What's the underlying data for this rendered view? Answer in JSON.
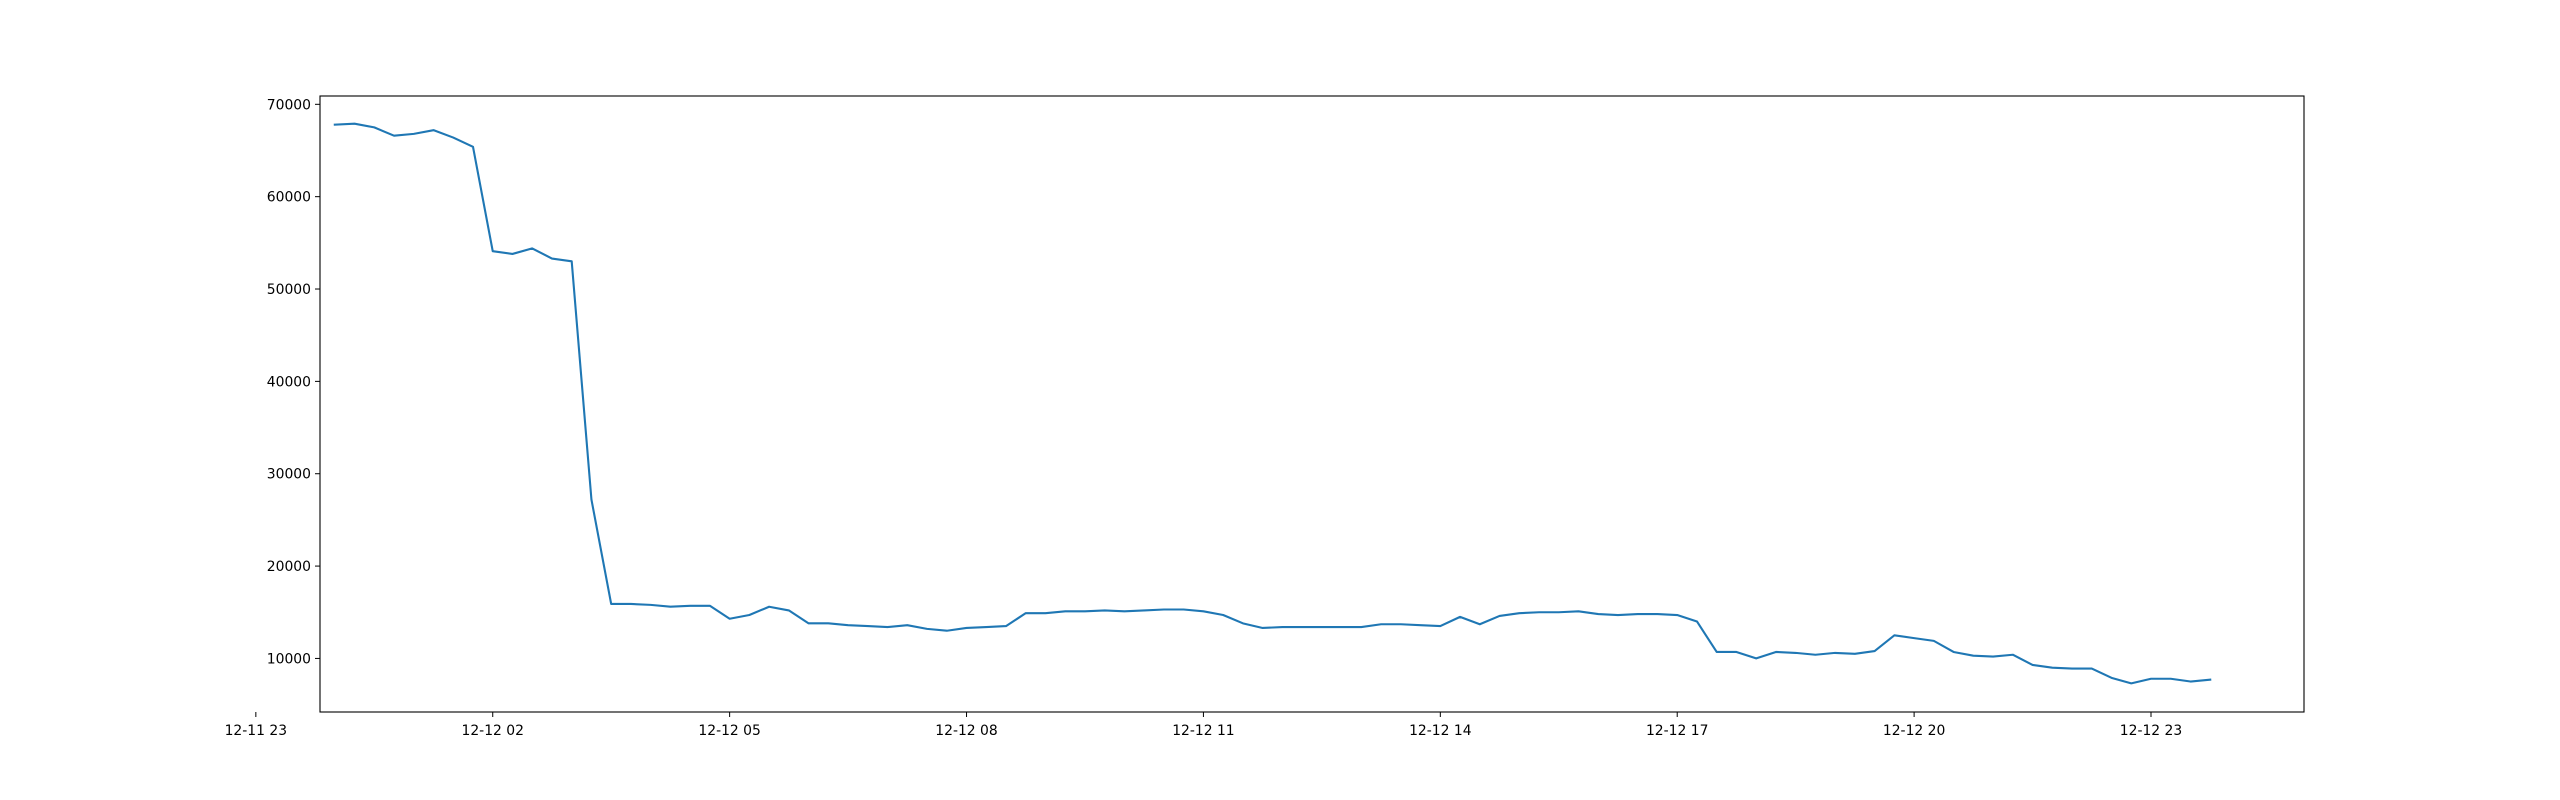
{
  "chart_data": {
    "type": "line",
    "x": [
      "12-12 00:00",
      "12-12 00:15",
      "12-12 00:30",
      "12-12 00:45",
      "12-12 01:00",
      "12-12 01:15",
      "12-12 01:30",
      "12-12 01:45",
      "12-12 02:00",
      "12-12 02:15",
      "12-12 02:30",
      "12-12 02:45",
      "12-12 03:00",
      "12-12 03:15",
      "12-12 03:30",
      "12-12 03:45",
      "12-12 04:00",
      "12-12 04:15",
      "12-12 04:30",
      "12-12 04:45",
      "12-12 05:00",
      "12-12 05:15",
      "12-12 05:30",
      "12-12 05:45",
      "12-12 06:00",
      "12-12 06:15",
      "12-12 06:30",
      "12-12 06:45",
      "12-12 07:00",
      "12-12 07:15",
      "12-12 07:30",
      "12-12 07:45",
      "12-12 08:00",
      "12-12 08:15",
      "12-12 08:30",
      "12-12 08:45",
      "12-12 09:00",
      "12-12 09:15",
      "12-12 09:30",
      "12-12 09:45",
      "12-12 10:00",
      "12-12 10:15",
      "12-12 10:30",
      "12-12 10:45",
      "12-12 11:00",
      "12-12 11:15",
      "12-12 11:30",
      "12-12 11:45",
      "12-12 12:00",
      "12-12 12:15",
      "12-12 12:30",
      "12-12 12:45",
      "12-12 13:00",
      "12-12 13:15",
      "12-12 13:30",
      "12-12 13:45",
      "12-12 14:00",
      "12-12 14:15",
      "12-12 14:30",
      "12-12 14:45",
      "12-12 15:00",
      "12-12 15:15",
      "12-12 15:30",
      "12-12 15:45",
      "12-12 16:00",
      "12-12 16:15",
      "12-12 16:30",
      "12-12 16:45",
      "12-12 17:00",
      "12-12 17:15",
      "12-12 17:30",
      "12-12 17:45",
      "12-12 18:00",
      "12-12 18:15",
      "12-12 18:30",
      "12-12 18:45",
      "12-12 19:00",
      "12-12 19:15",
      "12-12 19:30",
      "12-12 19:45",
      "12-12 20:00",
      "12-12 20:15",
      "12-12 20:30",
      "12-12 20:45",
      "12-12 21:00",
      "12-12 21:15",
      "12-12 21:30",
      "12-12 21:45",
      "12-12 22:00",
      "12-12 22:15",
      "12-12 22:30",
      "12-12 22:45",
      "12-12 23:00",
      "12-12 23:15",
      "12-12 23:30",
      "12-12 23:45"
    ],
    "series": [
      {
        "color": "#1f77b4",
        "values": [
          67800,
          67900,
          67500,
          66600,
          66800,
          67200,
          66400,
          65400,
          54100,
          53800,
          54400,
          53300,
          53000,
          27200,
          15900,
          15900,
          15800,
          15600,
          15700,
          15700,
          14300,
          14700,
          15600,
          15200,
          13800,
          13800,
          13600,
          13500,
          13400,
          13600,
          13200,
          13000,
          13300,
          13400,
          13500,
          14900,
          14900,
          15100,
          15100,
          15200,
          15100,
          15200,
          15300,
          15300,
          15100,
          14700,
          13800,
          13300,
          13400,
          13400,
          13400,
          13400,
          13400,
          13700,
          13700,
          13600,
          13500,
          14500,
          13700,
          14600,
          14900,
          15000,
          15000,
          15100,
          14800,
          14700,
          14800,
          14800,
          14700,
          14000,
          10700,
          10700,
          10000,
          10700,
          10600,
          10400,
          10600,
          10500,
          10800,
          12500,
          12200,
          11900,
          10700,
          10300,
          10200,
          10400,
          9300,
          9000,
          8900,
          8900,
          7900,
          7300,
          7800,
          7800,
          7500,
          7700
        ]
      }
    ],
    "xlim": [
      "12-11 23:48:45",
      "12-13 00:56:15"
    ],
    "xticks": [
      "12-11 23",
      "12-12 02",
      "12-12 05",
      "12-12 08",
      "12-12 11",
      "12-12 14",
      "12-12 17",
      "12-12 20",
      "12-12 23"
    ],
    "ylim": [
      4200,
      70900
    ],
    "yticks": [
      10000,
      20000,
      30000,
      40000,
      50000,
      60000,
      70000
    ],
    "grid": false
  }
}
